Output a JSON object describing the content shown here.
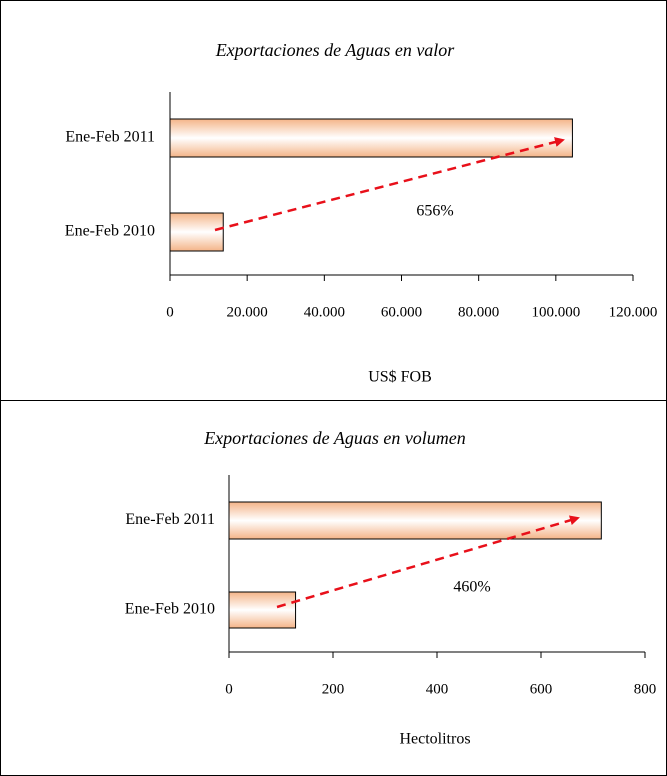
{
  "chart_data": [
    {
      "type": "bar",
      "orientation": "horizontal",
      "title": "Exportaciones de Aguas en valor",
      "categories": [
        "Ene-Feb 2011",
        "Ene-Feb 2010"
      ],
      "values": [
        104300,
        13800
      ],
      "xlim": [
        0,
        120000
      ],
      "xticks": [
        0,
        {
          "value": 20000,
          "label": "20.000"
        },
        {
          "value": 40000,
          "label": "40.000"
        },
        {
          "value": 60000,
          "label": "60.000"
        },
        {
          "value": 80000,
          "label": "80.000"
        },
        {
          "value": 100000,
          "label": "100.000"
        },
        {
          "value": 120000,
          "label": "120.000"
        }
      ],
      "xlabel": "US$ FOB",
      "annotation": "656%",
      "color": "#f4b488"
    },
    {
      "type": "bar",
      "orientation": "horizontal",
      "title": "Exportaciones de Aguas en volumen",
      "categories": [
        "Ene-Feb 2011",
        "Ene-Feb 2010"
      ],
      "values": [
        716,
        128
      ],
      "xlim": [
        0,
        800
      ],
      "xticks": [
        0,
        200,
        400,
        600,
        800
      ],
      "xlabel": "Hectolitros",
      "annotation": "460%",
      "color": "#f4b488"
    }
  ]
}
